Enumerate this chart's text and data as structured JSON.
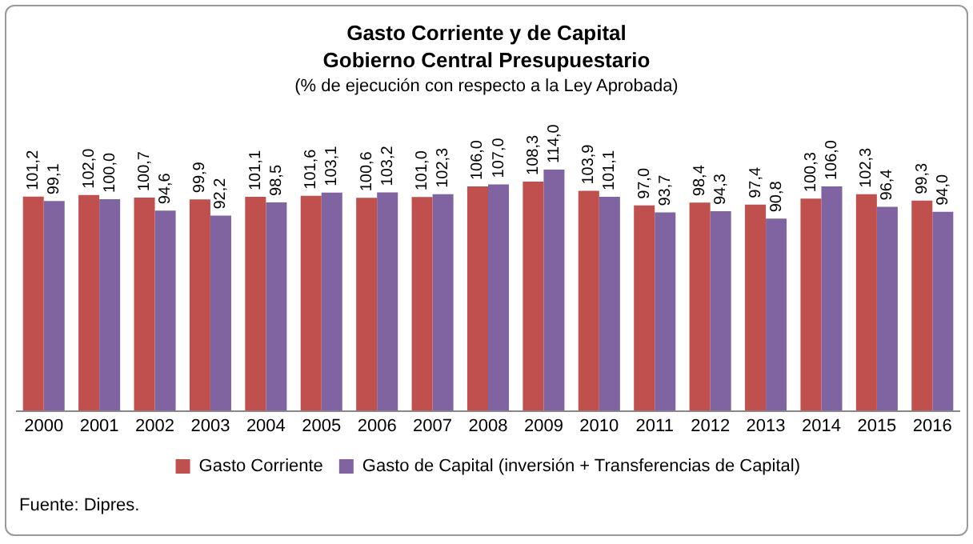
{
  "chart_data": {
    "type": "bar",
    "title": "Gasto Corriente y de Capital",
    "subtitle": "Gobierno Central Presupuestario",
    "annotations": [
      "(% de ejecución con respecto a la Ley Aprobada)",
      "Fuente:  Dipres."
    ],
    "categories": [
      "2000",
      "2001",
      "2002",
      "2003",
      "2004",
      "2005",
      "2006",
      "2007",
      "2008",
      "2009",
      "2010",
      "2011",
      "2012",
      "2013",
      "2014",
      "2015",
      "2016"
    ],
    "series": [
      {
        "name": "Gasto Corriente",
        "color": "#c0504d",
        "values": [
          101.2,
          102.0,
          100.7,
          99.9,
          101.1,
          101.6,
          100.6,
          101.0,
          106.0,
          108.3,
          103.9,
          97.0,
          98.4,
          97.4,
          100.3,
          102.3,
          99.3
        ],
        "value_labels": [
          "101,2",
          "102,0",
          "100,7",
          "99,9",
          "101,1",
          "101,6",
          "100,6",
          "101,0",
          "106,0",
          "108,3",
          "103,9",
          "97,0",
          "98,4",
          "97,4",
          "100,3",
          "102,3",
          "99,3"
        ]
      },
      {
        "name": "Gasto de Capital (inversión + Transferencias de Capital)",
        "color": "#8064a2",
        "values": [
          99.1,
          100.0,
          94.6,
          92.2,
          98.5,
          103.1,
          103.2,
          102.3,
          107.0,
          114.0,
          101.1,
          93.7,
          94.3,
          90.8,
          106.0,
          96.4,
          94.0
        ],
        "value_labels": [
          "99,1",
          "100,0",
          "94,6",
          "92,2",
          "98,5",
          "103,1",
          "103,2",
          "102,3",
          "107,0",
          "114,0",
          "101,1",
          "93,7",
          "94,3",
          "90,8",
          "106,0",
          "96,4",
          "94,0"
        ]
      }
    ],
    "legend": "bottom",
    "grid": false
  }
}
